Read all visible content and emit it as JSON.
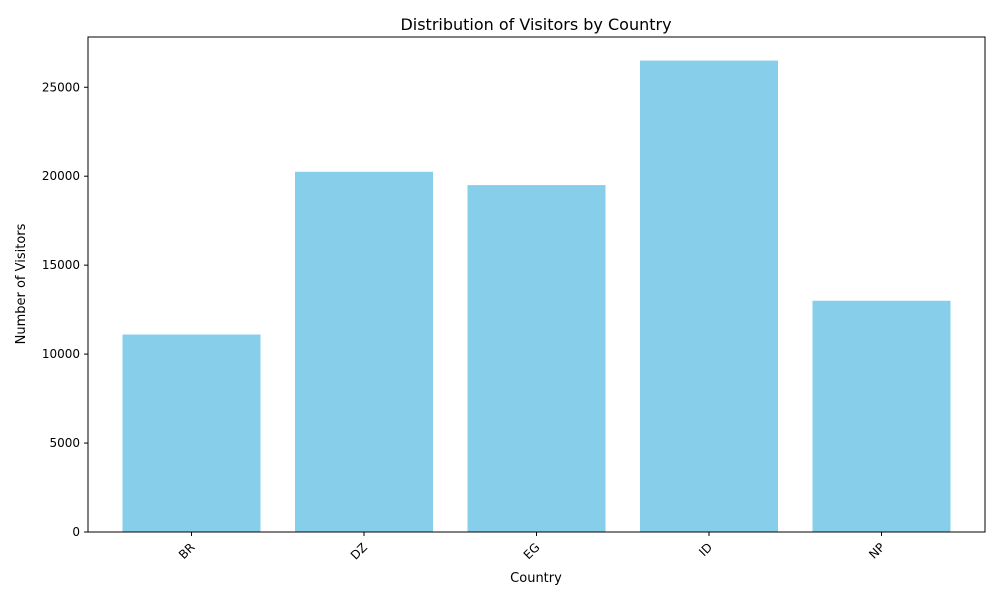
{
  "chart_data": {
    "type": "bar",
    "title": "Distribution of Visitors by Country",
    "xlabel": "Country",
    "ylabel": "Number of Visitors",
    "categories": [
      "BR",
      "DZ",
      "EG",
      "ID",
      "NP"
    ],
    "values": [
      11100,
      20250,
      19500,
      26500,
      13000
    ],
    "ylim": [
      0,
      27825
    ],
    "yticks": [
      0,
      5000,
      10000,
      15000,
      20000,
      25000
    ],
    "ytick_labels": [
      "0",
      "5000",
      "10000",
      "15000",
      "20000",
      "25000"
    ],
    "xtick_rotation_deg": 45,
    "grid": false,
    "legend": "none",
    "colors": {
      "bar": "#87CEEB",
      "axis": "#000000",
      "background": "#ffffff"
    }
  }
}
